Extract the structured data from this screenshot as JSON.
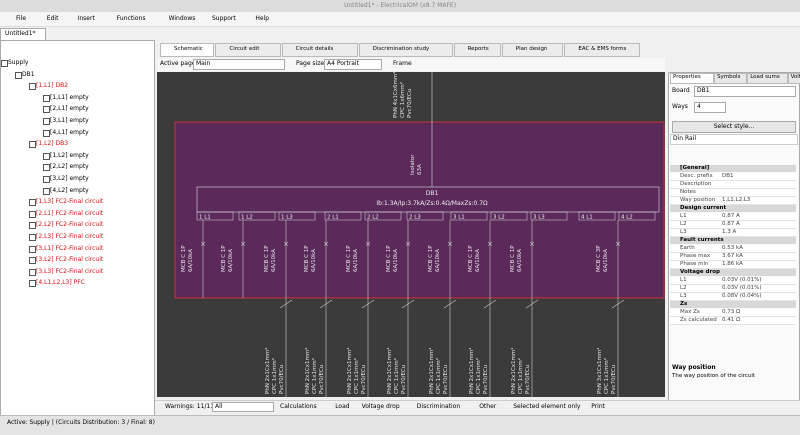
{
  "title_bar": {
    "title": "Untitled1* - ElectricalOM (x8.7 MAFE)"
  },
  "menu": [
    "File",
    "Edit",
    "Insert",
    "Functions",
    "Windows",
    "Support",
    "Help"
  ],
  "document_tab": "Untitled1*",
  "tree": [
    {
      "label": "Supply",
      "level": 0,
      "color": "#000000"
    },
    {
      "label": "DB1",
      "level": 1,
      "color": "#000000"
    },
    {
      "label": "[1,L1] DB2",
      "level": 2,
      "color": "#d01010"
    },
    {
      "label": "[1,L1] empty",
      "level": 3,
      "color": "#000000"
    },
    {
      "label": "[2,L1] empty",
      "level": 3,
      "color": "#000000"
    },
    {
      "label": "[3,L1] empty",
      "level": 3,
      "color": "#000000"
    },
    {
      "label": "[4,L1] empty",
      "level": 3,
      "color": "#000000"
    },
    {
      "label": "[1,L2] DB3",
      "level": 2,
      "color": "#d01010"
    },
    {
      "label": "[1,L2] empty",
      "level": 3,
      "color": "#000000"
    },
    {
      "label": "[2,L2] empty",
      "level": 3,
      "color": "#000000"
    },
    {
      "label": "[3,L2] empty",
      "level": 3,
      "color": "#000000"
    },
    {
      "label": "[4,L2] empty",
      "level": 3,
      "color": "#000000"
    },
    {
      "label": "[1,L3] FC2-Final circuit",
      "level": 2,
      "color": "#d01010"
    },
    {
      "label": "[2,L1] FC2-Final circuit",
      "level": 2,
      "color": "#d01010"
    },
    {
      "label": "[2,L2] FC2-Final circuit",
      "level": 2,
      "color": "#d01010"
    },
    {
      "label": "[2,L3] FC2-Final circuit",
      "level": 2,
      "color": "#d01010"
    },
    {
      "label": "[3,L1] FC2-Final circuit",
      "level": 2,
      "color": "#d01010"
    },
    {
      "label": "[3,L2] FC2-Final circuit",
      "level": 2,
      "color": "#d01010"
    },
    {
      "label": "[3,L3] FC2-Final circuit",
      "level": 2,
      "color": "#d01010"
    },
    {
      "label": "[4,L1,L2,L3] PFC",
      "level": 2,
      "color": "#d01010"
    }
  ],
  "view_tabs": [
    "Schematic",
    "Circuit edit",
    "Circuit details",
    "Discrimination study",
    "Reports",
    "Plan design",
    "EAC & EMS forms"
  ],
  "toolbar": {
    "active_page_label": "Active page",
    "active_page": "Main",
    "page_size_label": "Page size",
    "page_size": "A4 Portrait",
    "frame": "Frame"
  },
  "schematic": {
    "supply_cable": [
      "PhN 4x1Cx6mm²",
      "CPC 1x6mm²",
      "Pvc70/ECu"
    ],
    "isolator": [
      "Isolator",
      "63A"
    ],
    "board_name": "DB1",
    "board_summary": "Ib:1.3A/Ip:3.7kA/Zs:0.4Ω/MaxZs:0.7Ω",
    "ways": [
      "1 L1",
      "1 L2",
      "1 L3",
      "2 L1",
      "2 L2",
      "2 L3",
      "3 L1",
      "3 L2",
      "3 L3",
      "4 L1",
      "4 L2"
    ],
    "circuits": [
      {
        "device": [
          "MCB C 1P",
          "6A/10kA"
        ]
      },
      {
        "device": [
          "MCB C 1P",
          "6A/10kA"
        ]
      },
      {
        "device": [
          "MCB C 1P",
          "6A/10kA"
        ],
        "cable": [
          "PhN 2x1Cx1mm²",
          "CPC 1x1mm²",
          "Pvc70/ECu"
        ]
      },
      {
        "device": [
          "MCB C 1P",
          "6A/10kA"
        ],
        "cable": [
          "PhN 2x1Cx1mm²",
          "CPC 1x1mm²",
          "Pvc70/ECu"
        ]
      },
      {
        "device": [
          "MCB C 1P",
          "6A/10kA"
        ],
        "cable": [
          "PhN 2x1Cx1mm²",
          "CPC 1x1mm²",
          "Pvc70/ECu"
        ]
      },
      {
        "device": [
          "MCB C 1P",
          "6A/10kA"
        ],
        "cable": [
          "PhN 2x1Cx1mm²",
          "CPC 1x1mm²",
          "Pvc70/ECu"
        ]
      },
      {
        "device": [
          "MCB C 1P",
          "6A/10kA"
        ],
        "cable": [
          "PhN 2x1Cx1mm²",
          "CPC 1x1mm²",
          "Pvc70/ECu"
        ]
      },
      {
        "device": [
          "MCB C 1P",
          "6A/10kA"
        ],
        "cable": [
          "PhN 2x1Cx1mm²",
          "CPC 1x1mm²",
          "Pvc70/ECu"
        ]
      },
      {
        "device": [
          "MCB C 1P",
          "6A/10kA"
        ],
        "cable": [
          "PhN 2x1Cx1mm²",
          "CPC 1x1mm²",
          "Pvc70/ECu"
        ]
      },
      {
        "device": [
          "MCB C 3P",
          "6A/10kA"
        ],
        "cable": [
          "PhN 3x1Cx1mm²",
          "CPC 1x1mm²",
          "Pvc70/ECu"
        ]
      }
    ]
  },
  "properties": {
    "tabs": [
      "Properties",
      "Symbols",
      "Load sums",
      "Volt drop"
    ],
    "board_label": "Board",
    "board_value": "DB1",
    "ways_label": "Ways",
    "ways_value": "4",
    "style_button": "Select style...",
    "mounting": "Din Rail",
    "sections": [
      {
        "title": "[General]",
        "rows": [
          [
            "Desc. prefix",
            "DB1"
          ],
          [
            "Description",
            ""
          ],
          [
            "Notes",
            ""
          ],
          [
            "Way position",
            "1,L1,L2,L3"
          ]
        ]
      },
      {
        "title": "Design current",
        "rows": [
          [
            "L1",
            "0.87 A"
          ],
          [
            "L2",
            "0.87 A"
          ],
          [
            "L3",
            "1.3 A"
          ]
        ]
      },
      {
        "title": "Fault currents",
        "rows": [
          [
            "Earth",
            "0.53 kA"
          ],
          [
            "Phase max",
            "3.67 kA"
          ],
          [
            "Phase min",
            "1.86 kA"
          ]
        ]
      },
      {
        "title": "Voltage drop",
        "rows": [
          [
            "L1",
            "0.03V (0.01%)"
          ],
          [
            "L2",
            "0.03V (0.01%)"
          ],
          [
            "L3",
            "0.08V (0.04%)"
          ]
        ]
      },
      {
        "title": "Zs",
        "rows": [
          [
            "Max Zs",
            "0.73 Ω"
          ],
          [
            "Zs calculated",
            "0.41 Ω"
          ]
        ]
      }
    ],
    "help_title": "Way position",
    "help_text": "The way position of the circuit"
  },
  "bottom_bar": {
    "warnings": "Warnings: 11/11",
    "filter": "All",
    "buttons": [
      "Calculations",
      "Load",
      "Voltage drop",
      "Discrimination",
      "Other"
    ],
    "selected_only": "Selected element only",
    "print": "Print"
  },
  "status": "Active: Supply | (Circuits Distribution: 3 / Final: 8)"
}
